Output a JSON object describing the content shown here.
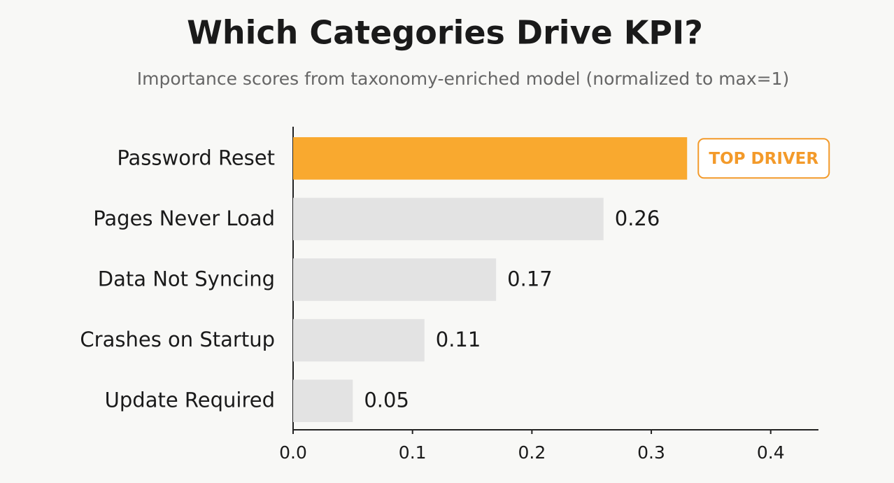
{
  "chart_data": {
    "type": "hbar",
    "title": "Which Categories Drive KPI?",
    "subtitle": "Importance scores from taxonomy-enriched model (normalized to max=1)",
    "categories": [
      "Password Reset",
      "Pages Never Load",
      "Data Not Syncing",
      "Crashes on Startup",
      "Update Required"
    ],
    "values": [
      0.33,
      0.26,
      0.17,
      0.11,
      0.05
    ],
    "colors": [
      "#f9a92f",
      "#e3e3e3",
      "#e3e3e3",
      "#e3e3e3",
      "#e3e3e3"
    ],
    "annotation": "TOP DRIVER",
    "annotation_color": "#f39a2a",
    "xlim": [
      0,
      0.44
    ],
    "xticks": [
      {
        "value": 0,
        "label": "0.0"
      },
      0.1,
      0.2,
      0.3,
      0.4
    ],
    "grid": false
  }
}
